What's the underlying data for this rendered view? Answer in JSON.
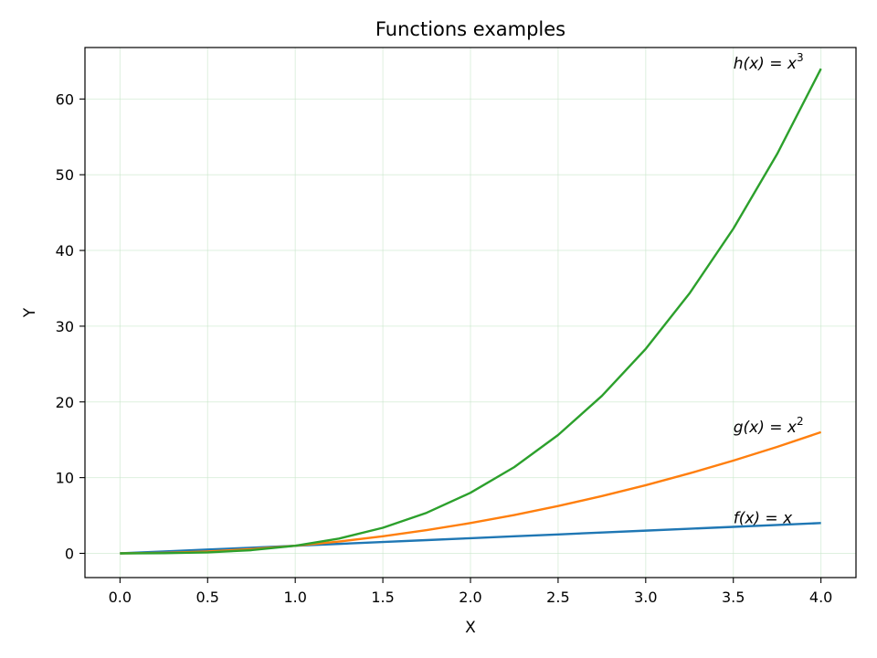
{
  "chart_data": {
    "type": "line",
    "title": "Functions examples",
    "xlabel": "X",
    "ylabel": "Y",
    "xlim": [
      -0.2,
      4.2
    ],
    "ylim": [
      -3.2,
      66.8
    ],
    "x_ticks": [
      0.0,
      0.5,
      1.0,
      1.5,
      2.0,
      2.5,
      3.0,
      3.5,
      4.0
    ],
    "x_tick_labels": [
      "0.0",
      "0.5",
      "1.0",
      "1.5",
      "2.0",
      "2.5",
      "3.0",
      "3.5",
      "4.0"
    ],
    "y_ticks": [
      0,
      10,
      20,
      30,
      40,
      50,
      60
    ],
    "y_tick_labels": [
      "0",
      "10",
      "20",
      "30",
      "40",
      "50",
      "60"
    ],
    "grid": true,
    "grid_color": "#c8e6c9",
    "x": [
      0.0,
      0.25,
      0.5,
      0.75,
      1.0,
      1.25,
      1.5,
      1.75,
      2.0,
      2.25,
      2.5,
      2.75,
      3.0,
      3.25,
      3.5,
      3.75,
      4.0
    ],
    "series": [
      {
        "color": "#1f77b4",
        "values": [
          0.0,
          0.25,
          0.5,
          0.75,
          1.0,
          1.25,
          1.5,
          1.75,
          2.0,
          2.25,
          2.5,
          2.75,
          3.0,
          3.25,
          3.5,
          3.75,
          4.0
        ]
      },
      {
        "color": "#ff7f0e",
        "values": [
          0.0,
          0.0625,
          0.25,
          0.5625,
          1.0,
          1.5625,
          2.25,
          3.0625,
          4.0,
          5.0625,
          6.25,
          7.5625,
          9.0,
          10.5625,
          12.25,
          14.0625,
          16.0
        ]
      },
      {
        "color": "#2ca02c",
        "values": [
          0.0,
          0.015625,
          0.125,
          0.421875,
          1.0,
          1.953125,
          3.375,
          5.359375,
          8.0,
          11.390625,
          15.625,
          20.796875,
          27.0,
          34.328125,
          42.875,
          52.734375,
          64.0
        ]
      }
    ],
    "annotations": [
      {
        "fn": "f",
        "lhs_suffix": "(x)",
        "op": " = ",
        "rhs": "x",
        "sup": "",
        "x": 3.5,
        "y": 4.0
      },
      {
        "fn": "g",
        "lhs_suffix": "(x)",
        "op": " = ",
        "rhs": "x",
        "sup": "2",
        "x": 3.5,
        "y": 16.0
      },
      {
        "fn": "h",
        "lhs_suffix": "(x)",
        "op": " = ",
        "rhs": "x",
        "sup": "3",
        "x": 3.5,
        "y": 64.0
      }
    ]
  }
}
